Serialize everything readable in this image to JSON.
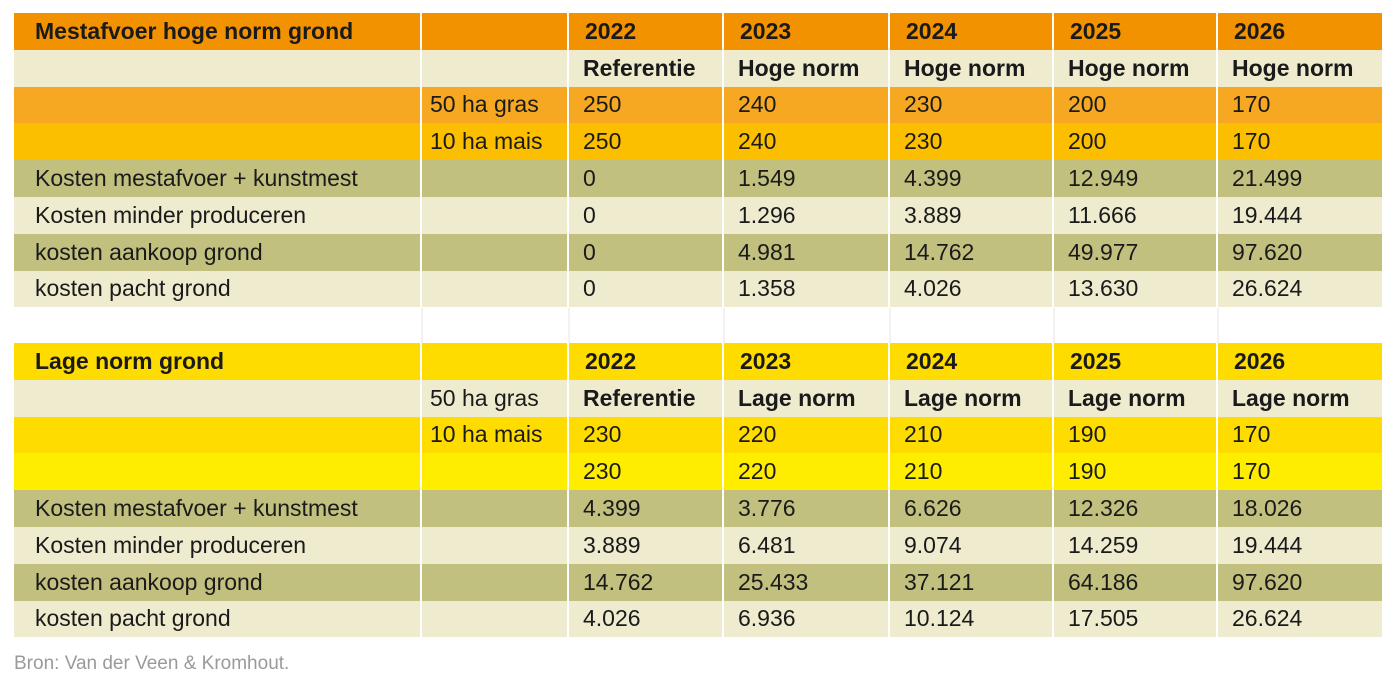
{
  "colors": {
    "orange_dark": "#f39200",
    "orange_mid": "#f7a823",
    "orange_light": "#fbbf00",
    "cream": "#efebcf",
    "olive": "#c2c07e",
    "yellow_bright": "#ffdc00",
    "yellow_light": "#ffed00"
  },
  "high": {
    "title": "Mestafvoer hoge norm grond",
    "years": [
      "2022",
      "2023",
      "2024",
      "2025",
      "2026"
    ],
    "norms": [
      "Referentie",
      "Hoge norm",
      "Hoge norm",
      "Hoge norm",
      "Hoge norm"
    ],
    "rows": [
      {
        "label": "",
        "sub": "50 ha gras",
        "values": [
          "250",
          "240",
          "230",
          "200",
          "170"
        ]
      },
      {
        "label": "",
        "sub": "10 ha mais",
        "values": [
          "250",
          "240",
          "230",
          "200",
          "170"
        ]
      },
      {
        "label": "Kosten mestafvoer + kunstmest",
        "sub": "",
        "values": [
          "0",
          "1.549",
          "4.399",
          "12.949",
          "21.499"
        ]
      },
      {
        "label": "Kosten minder produceren",
        "sub": "",
        "values": [
          "0",
          "1.296",
          "3.889",
          "11.666",
          "19.444"
        ]
      },
      {
        "label": "kosten aankoop grond",
        "sub": "",
        "values": [
          "0",
          "4.981",
          "14.762",
          "49.977",
          "97.620"
        ]
      },
      {
        "label": "kosten pacht grond",
        "sub": "",
        "values": [
          "0",
          "1.358",
          "4.026",
          "13.630",
          "26.624"
        ]
      }
    ]
  },
  "low": {
    "title": "Lage norm grond",
    "years": [
      "2022",
      "2023",
      "2024",
      "2025",
      "2026"
    ],
    "norm_sub": "50 ha gras",
    "norms": [
      "Referentie",
      "Lage norm",
      "Lage norm",
      "Lage norm",
      "Lage norm"
    ],
    "rows": [
      {
        "label": "",
        "sub": "10 ha mais",
        "values": [
          "230",
          "220",
          "210",
          "190",
          "170"
        ]
      },
      {
        "label": "",
        "sub": "",
        "values": [
          "230",
          "220",
          "210",
          "190",
          "170"
        ]
      },
      {
        "label": "Kosten mestafvoer + kunstmest",
        "sub": "",
        "values": [
          "4.399",
          "3.776",
          "6.626",
          "12.326",
          "18.026"
        ]
      },
      {
        "label": "Kosten minder produceren",
        "sub": "",
        "values": [
          "3.889",
          "6.481",
          "9.074",
          "14.259",
          "19.444"
        ]
      },
      {
        "label": "kosten aankoop grond",
        "sub": "",
        "values": [
          "14.762",
          "25.433",
          "37.121",
          "64.186",
          "97.620"
        ]
      },
      {
        "label": "kosten pacht grond",
        "sub": "",
        "values": [
          "4.026",
          "6.936",
          "10.124",
          "17.505",
          "26.624"
        ]
      }
    ]
  },
  "source": "Bron: Van der Veen & Kromhout."
}
